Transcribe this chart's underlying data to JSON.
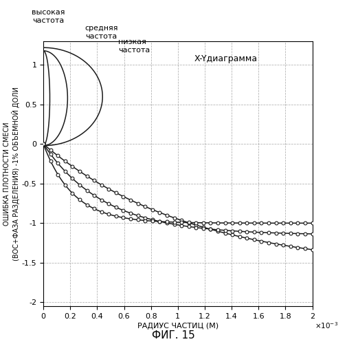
{
  "title": "X-Yдиаграмма",
  "xlabel": "РАДИУС ЧАСТИЦ (М)",
  "ylabel_line1": "ОШИБКА ПЛОТНОСТИ СМЕСИ",
  "ylabel_line2": "(ВОС+ФАЗА РАЗДЕЛЕНИЯ) -1% ОБЪЕМНОЙ ДОЛИ",
  "fig_label": "ФИГ. 15",
  "label_high": "высокая\nчастота",
  "label_mid": "средняя\nчастота",
  "label_low": "низкая\nчастота",
  "xlim": [
    0,
    0.002
  ],
  "ylim": [
    -2.05,
    1.3
  ],
  "yticks": [
    -2,
    -1.5,
    -1,
    -0.5,
    0,
    0.5,
    1
  ],
  "xticks": [
    0,
    0.0002,
    0.0004,
    0.0006,
    0.0008,
    0.001,
    0.0012,
    0.0014,
    0.0016,
    0.0018,
    0.002
  ],
  "xtick_labels": [
    "0",
    "0.2",
    "0.4",
    "0.6",
    "0.8",
    "1",
    "1.2",
    "1.4",
    "1.6",
    "1.8",
    "2"
  ],
  "bg_color": "#ffffff",
  "line_color": "#1a1a1a",
  "grid_color": "#999999",
  "marker_size": 3.5
}
